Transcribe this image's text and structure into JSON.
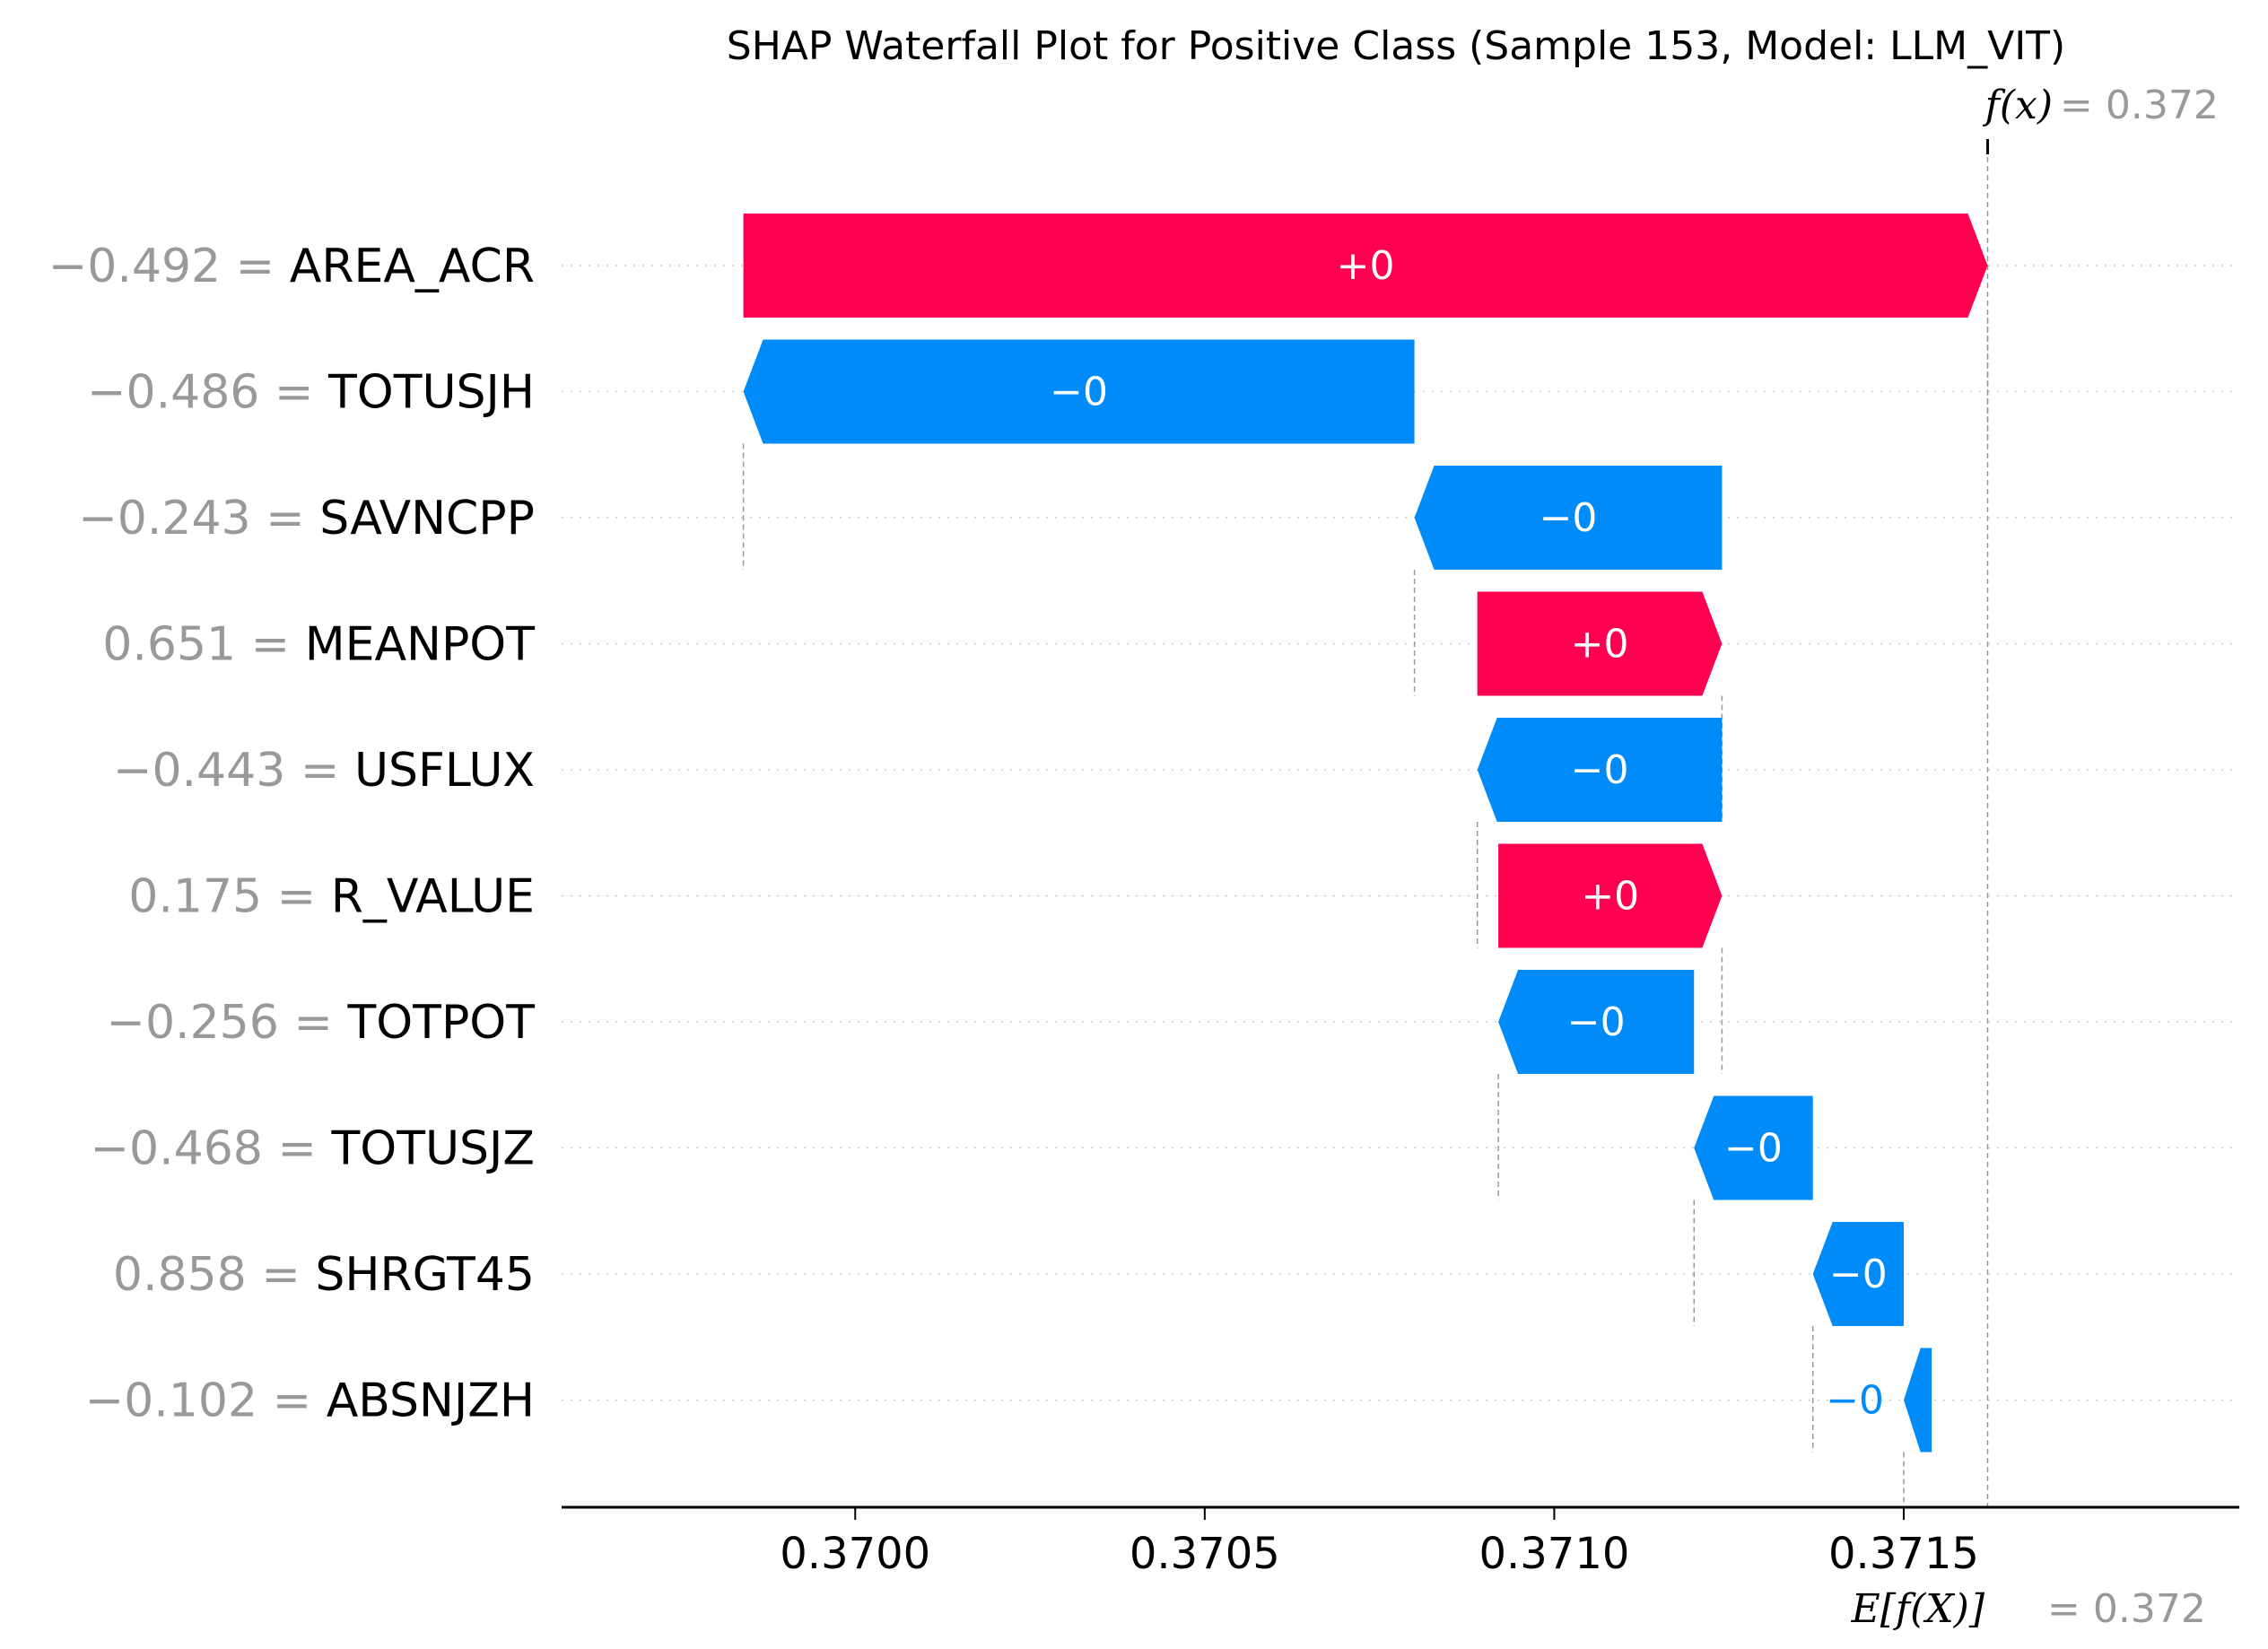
{
  "chart_data": {
    "type": "bar",
    "subtype": "shap-waterfall",
    "title": "SHAP Waterfall Plot for Positive Class (Sample 153, Model: LLM_VIT)",
    "fx": {
      "label": "f(x)",
      "value_text": "= 0.372",
      "value": 0.37162
    },
    "efx": {
      "label": "E[f(X)]",
      "value_text": "= 0.372",
      "value": 0.3715
    },
    "xlim": [
      0.36958,
      0.37198
    ],
    "xticks": [
      0.37,
      0.3705,
      0.371,
      0.3715
    ],
    "xtick_labels": [
      "0.3700",
      "0.3705",
      "0.3710",
      "0.3715"
    ],
    "grid": "dotted horizontal per row",
    "colors": {
      "positive": "#ff0051",
      "negative": "#008bfb",
      "value_text": "#999999",
      "axis": "#000000"
    },
    "features": [
      {
        "name": "AREA_ACR",
        "value_text": "−0.492 =",
        "label": "+0",
        "start": 0.36984,
        "end": 0.37162
      },
      {
        "name": "TOTUSJH",
        "value_text": "−0.486 =",
        "label": "−0",
        "start": 0.3708,
        "end": 0.36984
      },
      {
        "name": "SAVNCPP",
        "value_text": "−0.243 =",
        "label": "−0",
        "start": 0.37124,
        "end": 0.3708
      },
      {
        "name": "MEANPOT",
        "value_text": "0.651 =",
        "label": "+0",
        "start": 0.37089,
        "end": 0.37124
      },
      {
        "name": "USFLUX",
        "value_text": "−0.443 =",
        "label": "−0",
        "start": 0.37124,
        "end": 0.37089
      },
      {
        "name": "R_VALUE",
        "value_text": "0.175 =",
        "label": "+0",
        "start": 0.37092,
        "end": 0.37124
      },
      {
        "name": "TOTPOT",
        "value_text": "−0.256 =",
        "label": "−0",
        "start": 0.3712,
        "end": 0.37092
      },
      {
        "name": "TOTUSJZ",
        "value_text": "−0.468 =",
        "label": "−0",
        "start": 0.37137,
        "end": 0.3712
      },
      {
        "name": "SHRGT45",
        "value_text": "0.858 =",
        "label": "−0",
        "start": 0.3715,
        "end": 0.37137
      },
      {
        "name": "ABSNJZH",
        "value_text": "−0.102 =",
        "label": "−0",
        "start": 0.37154,
        "end": 0.3715
      }
    ]
  }
}
